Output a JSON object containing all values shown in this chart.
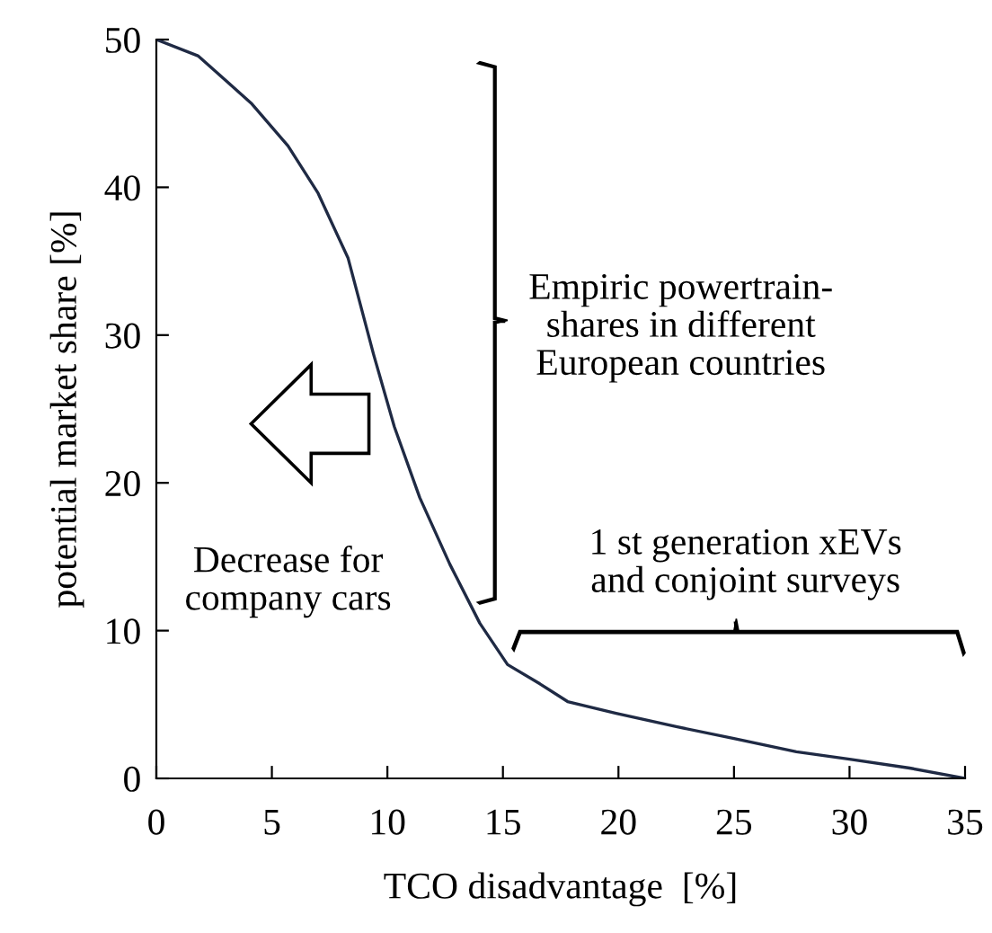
{
  "chart_data": {
    "type": "line",
    "xlabel": "TCO disadvantage  [%]",
    "ylabel": "potential market share [%]",
    "x": [
      0,
      1.8,
      4.1,
      5.7,
      7.0,
      8.3,
      9.4,
      10.3,
      11.4,
      12.7,
      14.0,
      15.2,
      16.6,
      17.8,
      19.9,
      22.5,
      25,
      27.7,
      30,
      32.6,
      35
    ],
    "series": [
      {
        "color": "#1f2a44",
        "values": [
          50,
          48.9,
          45.7,
          42.8,
          39.6,
          35.2,
          28.7,
          23.8,
          19.0,
          14.5,
          10.5,
          7.7,
          6.4,
          5.2,
          4.4,
          3.5,
          2.7,
          1.8,
          1.3,
          0.7,
          0
        ]
      }
    ],
    "xlim": [
      0,
      35
    ],
    "xticks": [
      0,
      5,
      10,
      15,
      20,
      25,
      30,
      35
    ],
    "ylim": [
      0,
      50
    ],
    "yticks": [
      0,
      10,
      20,
      30,
      40,
      50
    ],
    "grid": false,
    "legend": false,
    "marker": "none",
    "line_style": "solid",
    "annotations": [
      "Empiric powertrain-\nshares in different\nEuropean countries",
      "1 st generation xEVs\nand conjoint surveys",
      "Decrease for\ncompany cars"
    ]
  }
}
